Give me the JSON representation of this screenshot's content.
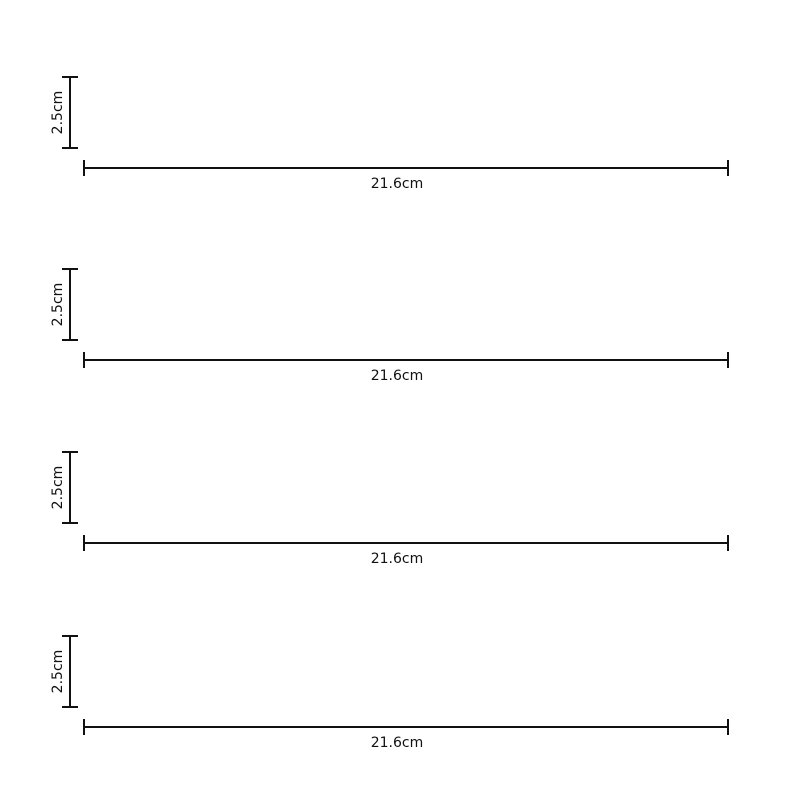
{
  "strips": [
    {
      "height_label": "2.5cm",
      "width_label": "21.6cm"
    },
    {
      "height_label": "2.5cm",
      "width_label": "21.6cm"
    },
    {
      "height_label": "2.5cm",
      "width_label": "21.6cm"
    },
    {
      "height_label": "2.5cm",
      "width_label": "21.6cm"
    }
  ]
}
